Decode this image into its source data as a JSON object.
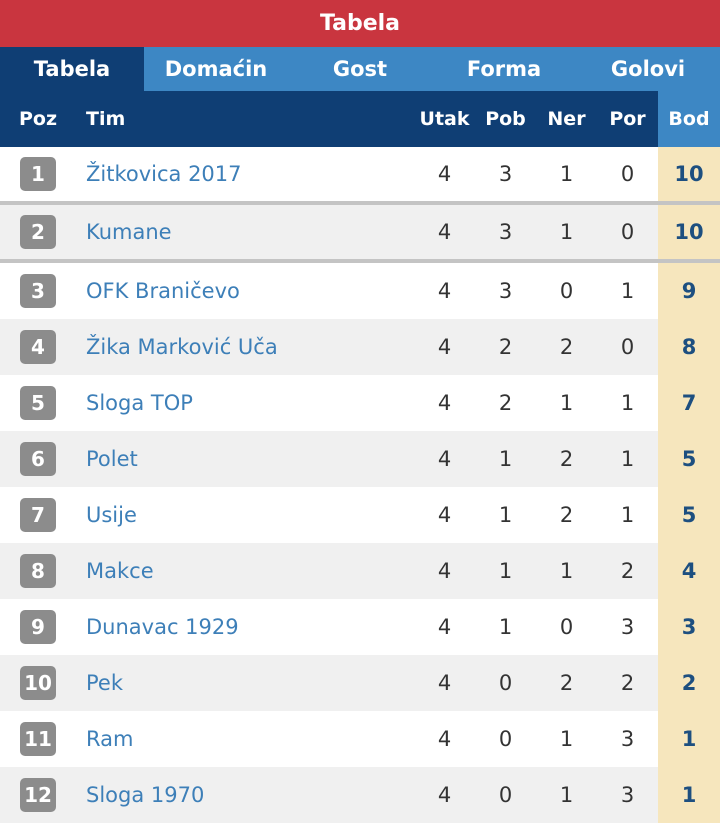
{
  "title": "Tabela",
  "tabs": [
    "Tabela",
    "Domaćin",
    "Gost",
    "Forma",
    "Golovi"
  ],
  "headers": {
    "poz": "Poz",
    "tim": "Tim",
    "utak": "Utak",
    "pob": "Pob",
    "ner": "Ner",
    "por": "Por",
    "bod": "Bod"
  },
  "rows": [
    {
      "poz": "1",
      "tim": "Žitkovica 2017",
      "utak": "4",
      "pob": "3",
      "ner": "1",
      "por": "0",
      "bod": "10"
    },
    {
      "poz": "2",
      "tim": "Kumane",
      "utak": "4",
      "pob": "3",
      "ner": "1",
      "por": "0",
      "bod": "10"
    },
    {
      "poz": "3",
      "tim": "OFK Braničevo",
      "utak": "4",
      "pob": "3",
      "ner": "0",
      "por": "1",
      "bod": "9"
    },
    {
      "poz": "4",
      "tim": "Žika Marković Uča",
      "utak": "4",
      "pob": "2",
      "ner": "2",
      "por": "0",
      "bod": "8"
    },
    {
      "poz": "5",
      "tim": "Sloga TOP",
      "utak": "4",
      "pob": "2",
      "ner": "1",
      "por": "1",
      "bod": "7"
    },
    {
      "poz": "6",
      "tim": "Polet",
      "utak": "4",
      "pob": "1",
      "ner": "2",
      "por": "1",
      "bod": "5"
    },
    {
      "poz": "7",
      "tim": "Usije",
      "utak": "4",
      "pob": "1",
      "ner": "2",
      "por": "1",
      "bod": "5"
    },
    {
      "poz": "8",
      "tim": "Makce",
      "utak": "4",
      "pob": "1",
      "ner": "1",
      "por": "2",
      "bod": "4"
    },
    {
      "poz": "9",
      "tim": "Dunavac 1929",
      "utak": "4",
      "pob": "1",
      "ner": "0",
      "por": "3",
      "bod": "3"
    },
    {
      "poz": "10",
      "tim": "Pek",
      "utak": "4",
      "pob": "0",
      "ner": "2",
      "por": "2",
      "bod": "2"
    },
    {
      "poz": "11",
      "tim": "Ram",
      "utak": "4",
      "pob": "0",
      "ner": "1",
      "por": "3",
      "bod": "1"
    },
    {
      "poz": "12",
      "tim": "Sloga 1970",
      "utak": "4",
      "pob": "0",
      "ner": "1",
      "por": "3",
      "bod": "1"
    }
  ]
}
